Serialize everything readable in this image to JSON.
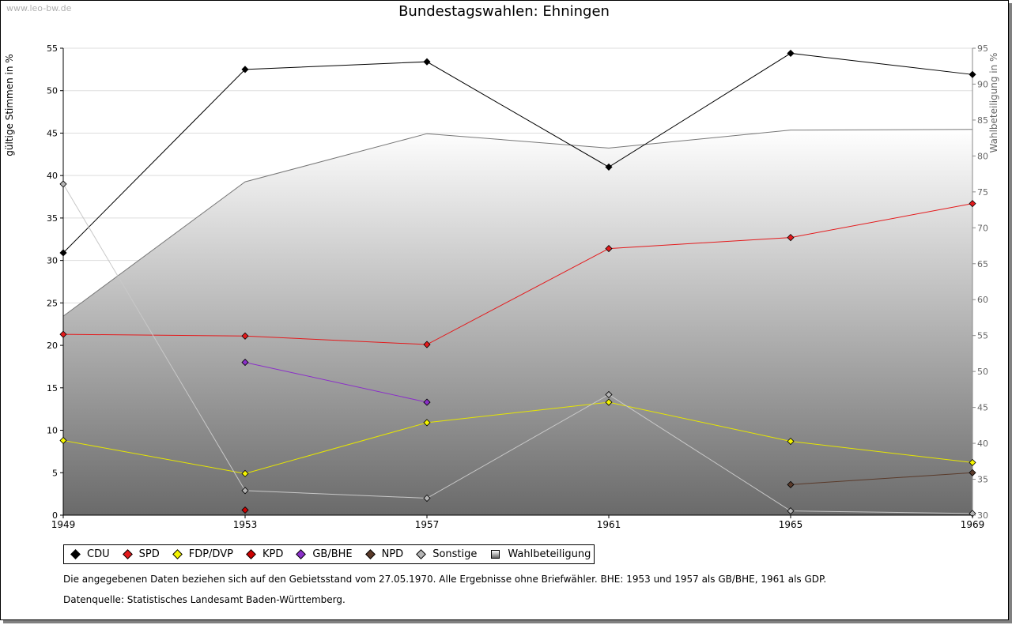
{
  "watermark": "www.leo-bw.de",
  "title": "Bundestagswahlen: Ehningen",
  "legend": [
    {
      "label": "CDU",
      "color": "#000000"
    },
    {
      "label": "SPD",
      "color": "#e41a1c"
    },
    {
      "label": "FDP/DVP",
      "color": "#f5f500"
    },
    {
      "label": "KPD",
      "color": "#cc0000"
    },
    {
      "label": "GB/BHE",
      "color": "#8b2fc9"
    },
    {
      "label": "NPD",
      "color": "#5a3a2a"
    },
    {
      "label": "Sonstige",
      "color": "#b4b4b4"
    },
    {
      "label": "Wahlbeteiligung",
      "color": "#999999"
    }
  ],
  "notes": {
    "line1": "Die angegebenen Daten beziehen sich auf den Gebietsstand vom 27.05.1970. Alle Ergebnisse ohne Briefwähler. BHE: 1953 und 1957 als GB/BHE, 1961 als GDP.",
    "line2": "Datenquelle: Statistisches Landesamt Baden-Württemberg."
  },
  "chart_data": {
    "type": "line",
    "title": "Bundestagswahlen: Ehningen",
    "x": [
      "1949",
      "1953",
      "1957",
      "1961",
      "1965",
      "1969"
    ],
    "ylabel": "gültige Stimmen in %",
    "y2label": "Wahlbeteiligung in %",
    "ylim": [
      0,
      55
    ],
    "y2lim": [
      30,
      95
    ],
    "yticks": [
      0,
      5,
      10,
      15,
      20,
      25,
      30,
      35,
      40,
      45,
      50,
      55
    ],
    "y2ticks": [
      30,
      35,
      40,
      45,
      50,
      55,
      60,
      65,
      70,
      75,
      80,
      85,
      90,
      95
    ],
    "grid": true,
    "legend_position": "bottom",
    "series": [
      {
        "name": "CDU",
        "color": "#000000",
        "line": "#000000",
        "values": [
          30.9,
          52.5,
          53.4,
          41.0,
          54.4,
          51.9
        ]
      },
      {
        "name": "SPD",
        "color": "#e41a1c",
        "line": "#e41a1c",
        "values": [
          21.3,
          21.1,
          20.1,
          31.4,
          32.7,
          36.7
        ]
      },
      {
        "name": "FDP/DVP",
        "color": "#f5f500",
        "line": "#e6e600",
        "values": [
          8.8,
          4.9,
          10.9,
          13.3,
          8.7,
          6.2
        ]
      },
      {
        "name": "KPD",
        "color": "#cc0000",
        "line": "#cc0000",
        "values": [
          null,
          0.6,
          null,
          null,
          null,
          null
        ]
      },
      {
        "name": "GB/BHE",
        "color": "#8b2fc9",
        "line": "#8b2fc9",
        "values": [
          null,
          18.0,
          13.3,
          null,
          null,
          null
        ]
      },
      {
        "name": "NPD",
        "color": "#5a3a2a",
        "line": "#5a3a2a",
        "values": [
          null,
          null,
          null,
          null,
          3.6,
          5.0
        ]
      },
      {
        "name": "Sonstige",
        "color": "#b4b4b4",
        "line": "#c8c8c8",
        "values": [
          39.0,
          2.9,
          2.0,
          14.2,
          0.5,
          0.2
        ]
      }
    ],
    "area": {
      "name": "Wahlbeteiligung",
      "axis": "right",
      "values": [
        57.7,
        76.4,
        83.1,
        81.1,
        83.6,
        83.7
      ]
    }
  }
}
